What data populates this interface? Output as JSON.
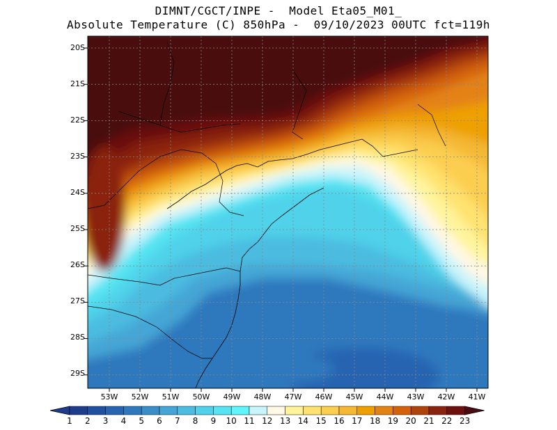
{
  "header": {
    "line1": "DIMNT/CGCT/INPE -  Model Eta05_M01_",
    "line2": "Absolute Temperature (C) 850hPa -  09/10/2023 00UTC fct=119h"
  },
  "map": {
    "lat_labels": [
      "20S",
      "21S",
      "22S",
      "23S",
      "24S",
      "25S",
      "26S",
      "27S",
      "28S",
      "29S"
    ],
    "lon_labels": [
      "53W",
      "52W",
      "51W",
      "50W",
      "49W",
      "48W",
      "47W",
      "46W",
      "45W",
      "44W",
      "43W",
      "42W",
      "41W"
    ]
  },
  "colorbar": {
    "labels": [
      "1",
      "2",
      "3",
      "4",
      "5",
      "6",
      "7",
      "8",
      "9",
      "10",
      "11",
      "12",
      "13",
      "14",
      "15",
      "16",
      "17",
      "18",
      "19",
      "20",
      "21",
      "22",
      "23"
    ],
    "colors": [
      "#1e3c8c",
      "#2050a0",
      "#2864b0",
      "#2e78be",
      "#3a8ec8",
      "#44a6d6",
      "#4cbce0",
      "#50d2ea",
      "#54e4f2",
      "#60f4fc",
      "#c8f4fc",
      "#fff8e4",
      "#fff49c",
      "#ffe270",
      "#fcce50",
      "#f4b834",
      "#eea000",
      "#e48214",
      "#d4620a",
      "#b0420c",
      "#8a2410",
      "#6c1010",
      "#4a0c10"
    ]
  }
}
